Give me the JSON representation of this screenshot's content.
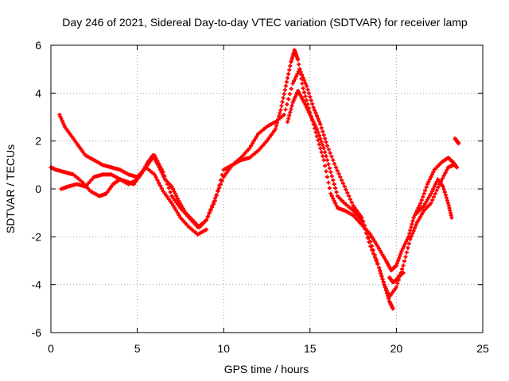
{
  "chart_data": {
    "type": "scatter",
    "title": "Day 246 of 2021, Sidereal Day-to-day VTEC variation (SDTVAR) for receiver lamp",
    "xlabel": "GPS time / hours",
    "ylabel": "SDTVAR / TECUs",
    "xlim": [
      0,
      25
    ],
    "ylim": [
      -6,
      6
    ],
    "xticks": [
      0,
      5,
      10,
      15,
      20,
      25
    ],
    "yticks": [
      -6,
      -4,
      -2,
      0,
      2,
      4,
      6
    ],
    "xtick_labels": [
      "0",
      "5",
      "10",
      "15",
      "20",
      "25"
    ],
    "ytick_labels": [
      "-6",
      "-4",
      "-2",
      "0",
      "2",
      "4",
      "6"
    ],
    "grid": true,
    "marker": "plus",
    "color": "#ff0000",
    "series": [
      {
        "name": "track-1",
        "x": [
          0.0,
          0.3,
          0.8,
          1.3,
          1.8,
          2.3,
          2.8,
          3.2,
          3.6,
          4.0,
          4.4,
          4.8,
          5.2,
          5.6,
          5.9,
          6.2,
          6.6,
          7.0,
          7.4,
          7.8,
          8.2,
          8.6,
          9.0,
          9.5,
          10.0,
          10.5,
          11.0,
          11.5,
          12.0,
          12.5,
          13.0,
          13.3,
          13.6,
          13.9,
          14.1,
          14.3,
          14.6,
          15.0,
          15.4,
          15.8,
          16.2,
          16.6,
          17.0,
          17.5,
          18.0,
          18.5,
          19.0,
          19.4,
          19.7,
          20.0,
          20.3,
          20.7,
          21.0,
          21.4,
          21.8,
          22.2,
          22.6,
          23.0,
          23.3,
          23.5
        ],
        "y": [
          0.9,
          0.8,
          0.7,
          0.6,
          0.3,
          -0.1,
          -0.3,
          -0.2,
          0.2,
          0.4,
          0.3,
          0.2,
          0.6,
          1.1,
          1.4,
          1.0,
          0.4,
          0.1,
          -0.5,
          -1.0,
          -1.3,
          -1.6,
          -1.3,
          -0.4,
          0.5,
          1.0,
          1.2,
          1.3,
          1.6,
          2.0,
          2.5,
          3.3,
          4.3,
          5.3,
          5.8,
          5.4,
          4.2,
          3.2,
          2.2,
          1.2,
          -0.2,
          -0.8,
          -0.9,
          -1.1,
          -1.5,
          -1.9,
          -2.5,
          -3.0,
          -3.4,
          -3.2,
          -2.6,
          -2.0,
          -1.2,
          -0.6,
          0.2,
          0.8,
          1.1,
          1.3,
          1.1,
          0.9
        ]
      },
      {
        "name": "track-2",
        "x": [
          0.5,
          0.8,
          1.2,
          1.6,
          2.0,
          2.5,
          3.0,
          3.5,
          4.0,
          4.5,
          5.0,
          5.5,
          6.0,
          6.5,
          7.0,
          7.5,
          8.0,
          8.5,
          9.0,
          9.5,
          10.0,
          10.5,
          11.0,
          11.5,
          12.0,
          12.5,
          13.0,
          13.5,
          14.0,
          14.4,
          14.8,
          15.2,
          15.6,
          16.0,
          16.5,
          17.0,
          17.5,
          18.0,
          18.5,
          19.0,
          19.3,
          19.6,
          20.0,
          20.4,
          20.8,
          21.2,
          21.6,
          22.0,
          22.5,
          23.0,
          23.3
        ],
        "y": [
          3.1,
          2.6,
          2.2,
          1.8,
          1.4,
          1.2,
          1.0,
          0.9,
          0.8,
          0.6,
          0.5,
          0.9,
          1.4,
          0.7,
          -0.3,
          -0.8,
          -1.2,
          -1.6,
          -1.3,
          -0.5,
          0.8,
          1.0,
          1.3,
          1.7,
          2.3,
          2.6,
          2.8,
          3.1,
          4.4,
          5.0,
          4.3,
          3.4,
          2.7,
          1.8,
          0.9,
          0.1,
          -0.7,
          -1.2,
          -2.2,
          -3.3,
          -4.0,
          -4.5,
          -4.1,
          -3.2,
          -2.1,
          -1.4,
          -0.9,
          -0.6,
          0.2,
          0.9,
          1.0
        ]
      },
      {
        "name": "track-3",
        "x": [
          0.6,
          1.0,
          1.5,
          2.0,
          2.5,
          3.0,
          3.5,
          4.0,
          4.5,
          5.0,
          5.5,
          6.0,
          6.5,
          7.0,
          7.5,
          8.0,
          8.5,
          9.0
        ],
        "y": [
          0.0,
          0.1,
          0.2,
          0.1,
          0.5,
          0.6,
          0.6,
          0.4,
          0.2,
          0.4,
          0.9,
          0.6,
          -0.1,
          -0.6,
          -1.2,
          -1.6,
          -1.9,
          -1.7
        ]
      },
      {
        "name": "track-4",
        "x": [
          13.7,
          14.0,
          14.3,
          14.6,
          15.0,
          15.4,
          15.8,
          16.2,
          16.6,
          17.0,
          17.5,
          18.0,
          18.5,
          19.0,
          19.3,
          19.6,
          19.8
        ],
        "y": [
          2.8,
          3.6,
          4.1,
          3.7,
          3.1,
          2.5,
          1.7,
          0.7,
          -0.3,
          -0.6,
          -0.9,
          -1.3,
          -2.4,
          -3.3,
          -4.0,
          -4.7,
          -5.0
        ]
      },
      {
        "name": "track-5",
        "x": [
          21.2,
          21.6,
          22.0,
          22.4,
          22.7,
          23.0,
          23.2
        ],
        "y": [
          -1.0,
          -0.7,
          -0.2,
          0.4,
          0.1,
          -0.6,
          -1.2
        ]
      },
      {
        "name": "track-6",
        "x": [
          19.6,
          19.8,
          20.0,
          20.2,
          20.4
        ],
        "y": [
          -3.7,
          -3.9,
          -3.8,
          -3.6,
          -3.5
        ]
      },
      {
        "name": "track-7",
        "x": [
          23.4,
          23.5,
          23.6
        ],
        "y": [
          2.1,
          2.0,
          1.9
        ]
      }
    ]
  }
}
